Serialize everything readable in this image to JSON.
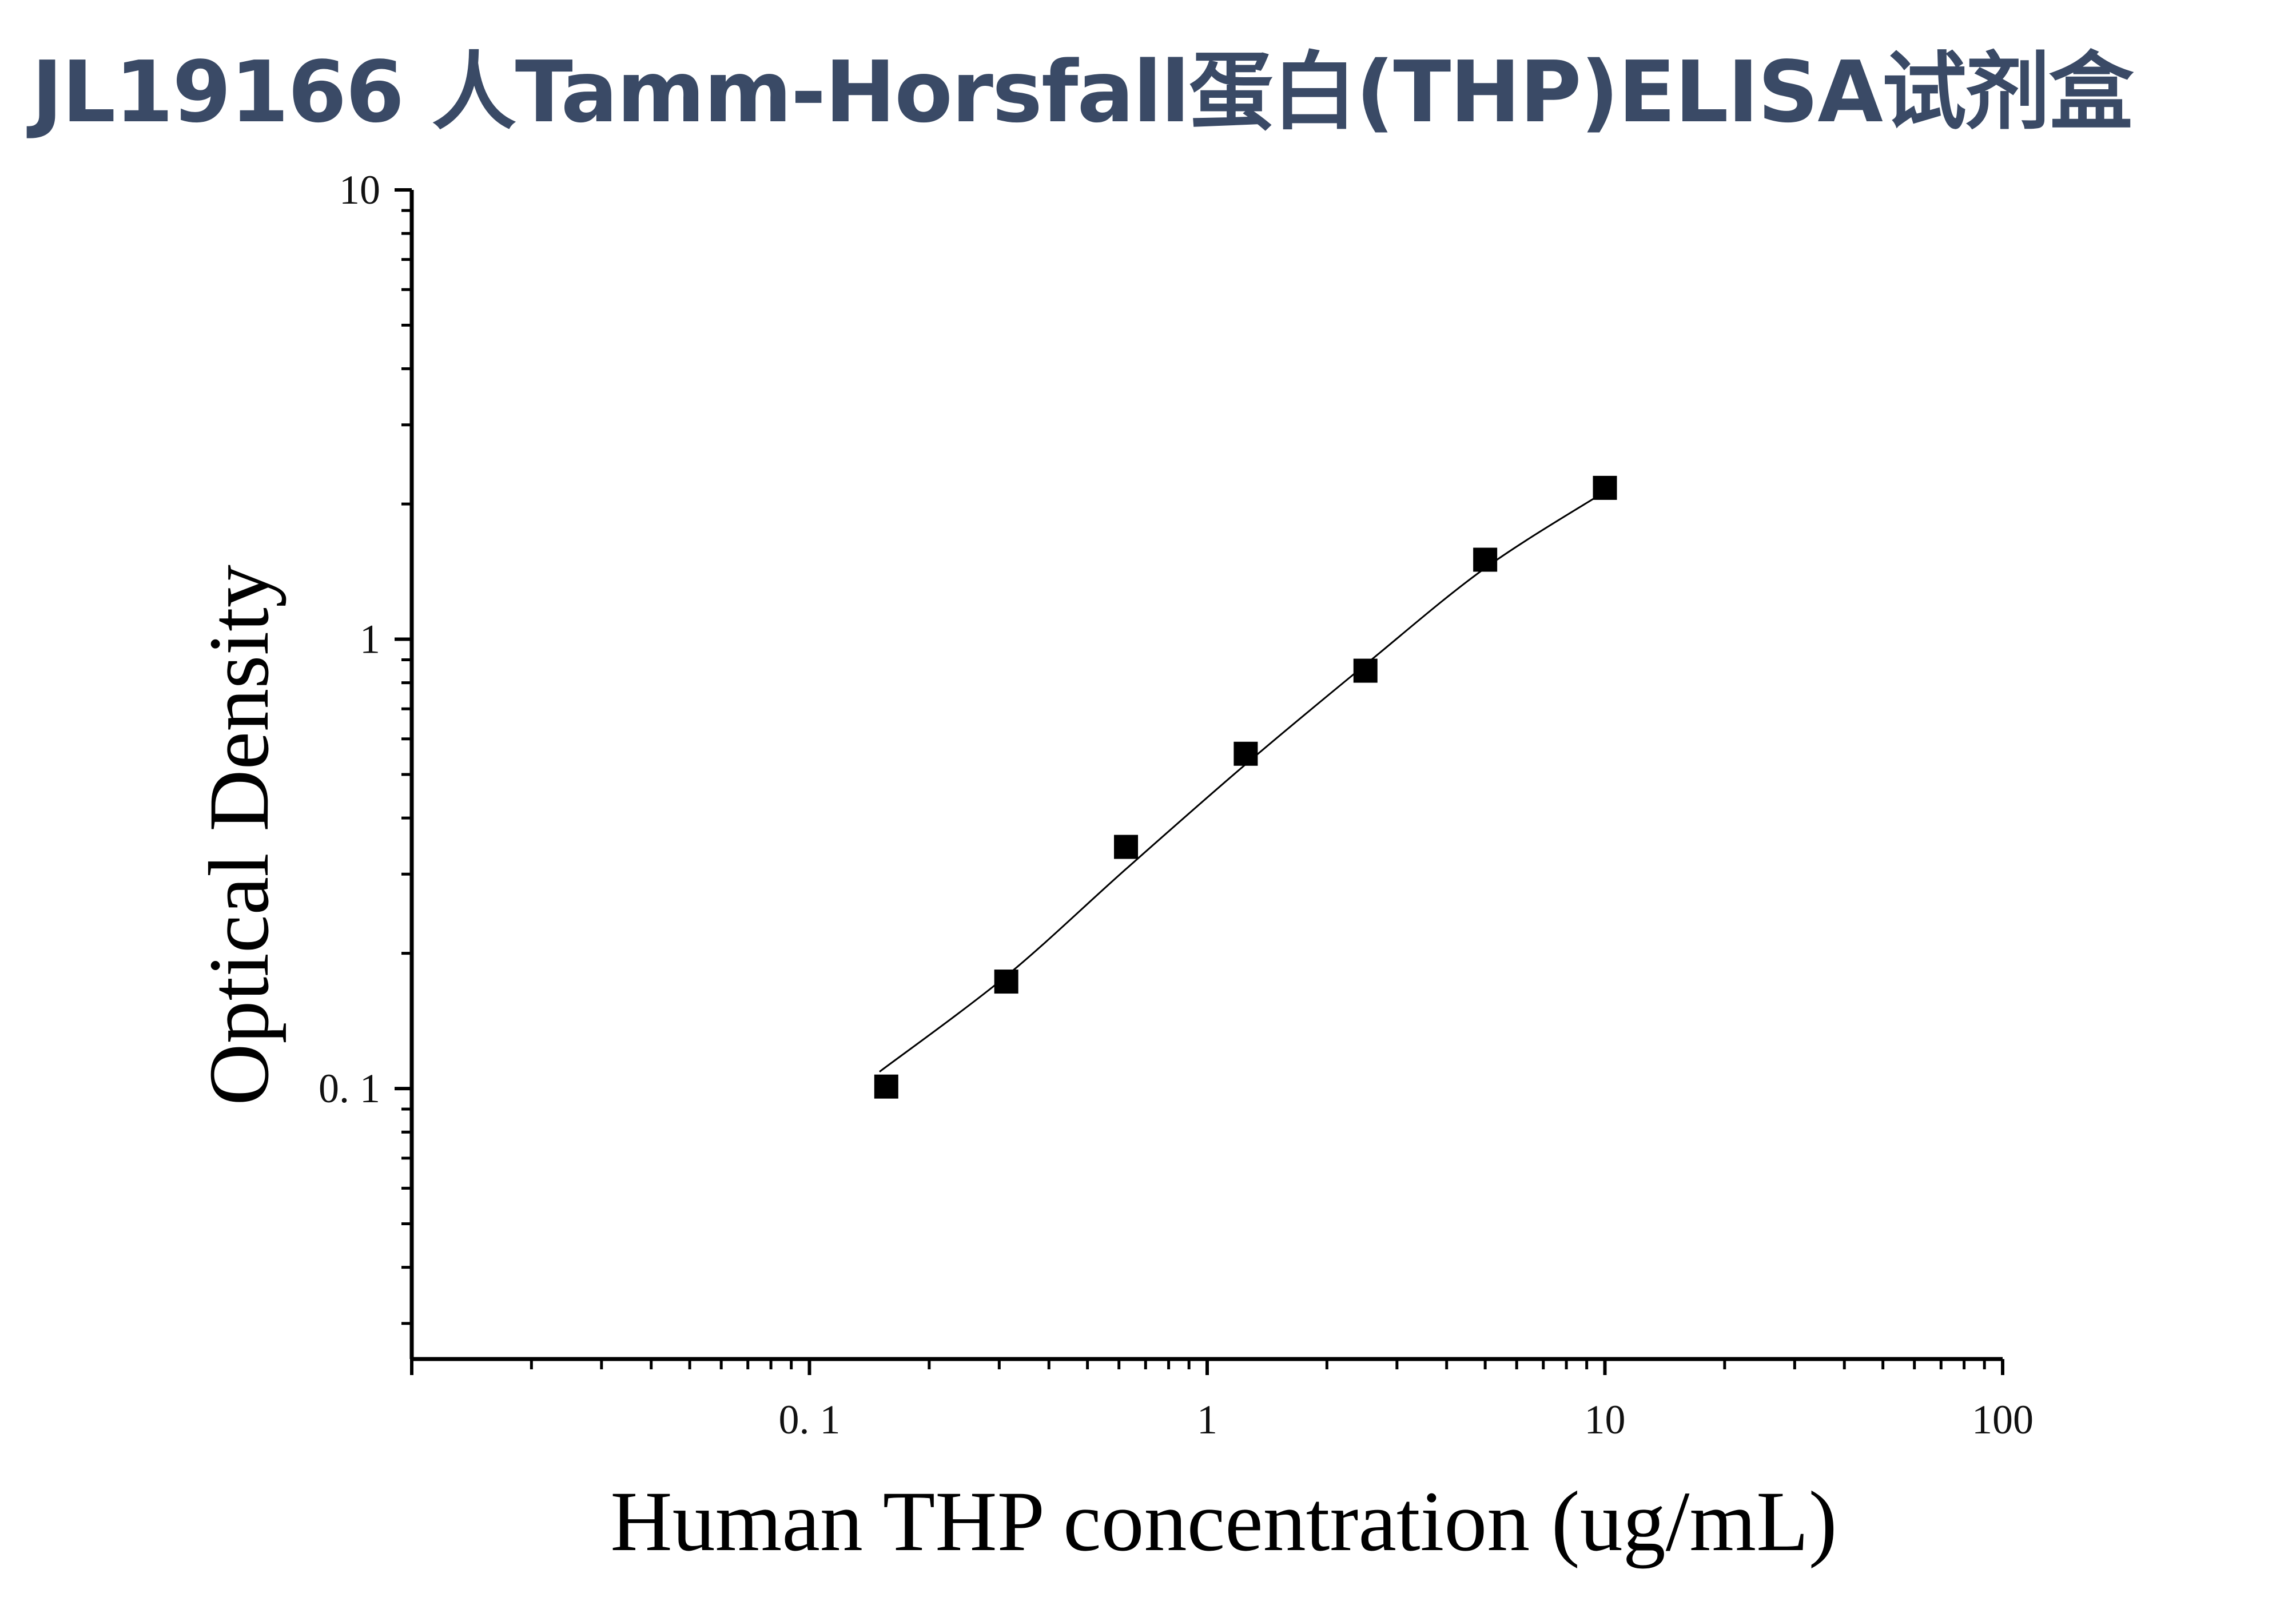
{
  "chart_data": {
    "type": "scatter",
    "title": "JL19166 人Tamm-Horsfall蛋白(THP)ELISA试剂盒",
    "xlabel": "Human THP concentration (ug/mL)",
    "ylabel": "Optical Density",
    "xscale": "log",
    "yscale": "log",
    "xlim": [
      0.01,
      100
    ],
    "ylim": [
      0.025,
      10
    ],
    "xticks": [
      {
        "value": 0.1,
        "label": "0. 1"
      },
      {
        "value": 1,
        "label": "1"
      },
      {
        "value": 10,
        "label": "10"
      },
      {
        "value": 100,
        "label": "100"
      }
    ],
    "yticks": [
      {
        "value": 0.1,
        "label": "0. 1"
      },
      {
        "value": 1,
        "label": "1"
      },
      {
        "value": 10,
        "label": "10"
      }
    ],
    "grid": false,
    "marker": "square",
    "marker_color": "#000000",
    "fit_line": "smooth",
    "x": [
      0.156,
      0.3125,
      0.625,
      1.25,
      2.5,
      5,
      10
    ],
    "y": [
      0.101,
      0.173,
      0.345,
      0.556,
      0.851,
      1.503,
      2.172
    ],
    "fit_curve": {
      "x": [
        0.15,
        0.3125,
        0.625,
        1.25,
        2.5,
        5,
        10
      ],
      "y": [
        0.109,
        0.178,
        0.308,
        0.527,
        0.878,
        1.44,
        2.13
      ]
    }
  }
}
